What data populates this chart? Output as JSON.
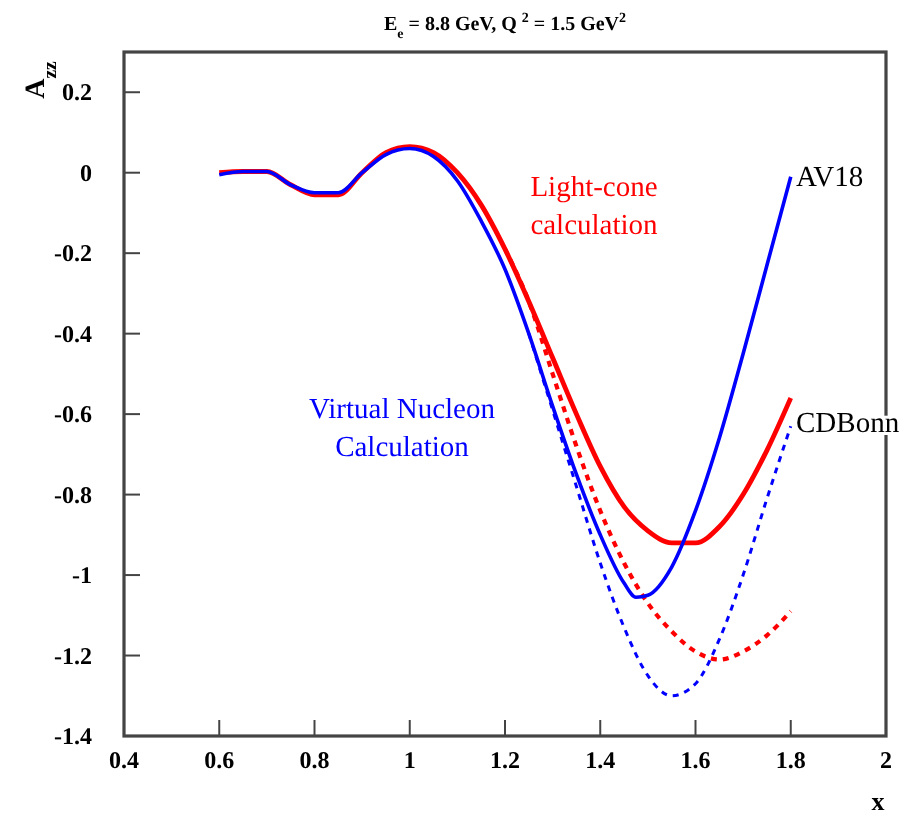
{
  "chart_data": {
    "type": "line",
    "title": "E$_{e}$ = 8.8 GeV, Q $^{2}$ = 1.5 GeV$^{2}$",
    "xlabel": "x",
    "ylabel": "A$_{zz}$",
    "xlim": [
      0.4,
      2
    ],
    "xticks": [
      0.4,
      0.6,
      0.8,
      1,
      1.2,
      1.4,
      1.6,
      1.8,
      2
    ],
    "ylim": [
      -1.4,
      0.3
    ],
    "yticks": [
      -1.4,
      -1.2,
      -1,
      -0.8,
      -0.6,
      -0.4,
      -0.2,
      0,
      0.2
    ],
    "grid": false,
    "marker": "none",
    "annotations": [
      "Light-cone\ncalculation",
      "Virtual Nucleon\nCalculation",
      "AV18",
      "CDBonn"
    ],
    "series": [
      {
        "color": "#ff0000",
        "line_style": "solid",
        "x": [
          0.6,
          0.65,
          0.7,
          0.75,
          0.8,
          0.85,
          0.9,
          0.95,
          1.0,
          1.05,
          1.1,
          1.15,
          1.2,
          1.25,
          1.3,
          1.35,
          1.4,
          1.45,
          1.5,
          1.55,
          1.6,
          1.65,
          1.7,
          1.75,
          1.8
        ],
        "values": [
          0,
          0.003,
          0.003,
          -0.03,
          -0.055,
          -0.055,
          0.0,
          0.05,
          0.065,
          0.05,
          0.0,
          -0.08,
          -0.19,
          -0.32,
          -0.46,
          -0.6,
          -0.73,
          -0.83,
          -0.89,
          -0.92,
          -0.92,
          -0.88,
          -0.8,
          -0.69,
          -0.56
        ]
      },
      {
        "color": "#ff0000",
        "line_style": "dashed",
        "x": [
          1.2,
          1.25,
          1.3,
          1.35,
          1.4,
          1.45,
          1.5,
          1.55,
          1.6,
          1.65,
          1.7,
          1.75,
          1.8
        ],
        "values": [
          -0.19,
          -0.32,
          -0.5,
          -0.68,
          -0.84,
          -0.97,
          -1.07,
          -1.14,
          -1.19,
          -1.21,
          -1.19,
          -1.15,
          -1.09
        ]
      },
      {
        "color": "#0000ff",
        "line_style": "solid",
        "x": [
          0.6,
          0.65,
          0.7,
          0.75,
          0.8,
          0.85,
          0.9,
          0.95,
          1.0,
          1.05,
          1.1,
          1.15,
          1.2,
          1.25,
          1.3,
          1.35,
          1.4,
          1.45,
          1.475,
          1.5,
          1.55,
          1.6,
          1.65,
          1.7,
          1.75,
          1.8
        ],
        "values": [
          -0.005,
          0.003,
          0.003,
          -0.03,
          -0.05,
          -0.05,
          0.0,
          0.045,
          0.06,
          0.04,
          -0.02,
          -0.12,
          -0.24,
          -0.4,
          -0.58,
          -0.75,
          -0.9,
          -1.02,
          -1.055,
          -1.05,
          -0.98,
          -0.84,
          -0.66,
          -0.45,
          -0.23,
          -0.01
        ]
      },
      {
        "color": "#0000ff",
        "line_style": "dashed",
        "x": [
          1.25,
          1.3,
          1.35,
          1.4,
          1.45,
          1.5,
          1.55,
          1.6,
          1.65,
          1.7,
          1.75,
          1.8
        ],
        "values": [
          -0.4,
          -0.59,
          -0.78,
          -0.97,
          -1.13,
          -1.25,
          -1.3,
          -1.27,
          -1.16,
          -1.0,
          -0.81,
          -0.63
        ]
      }
    ]
  }
}
